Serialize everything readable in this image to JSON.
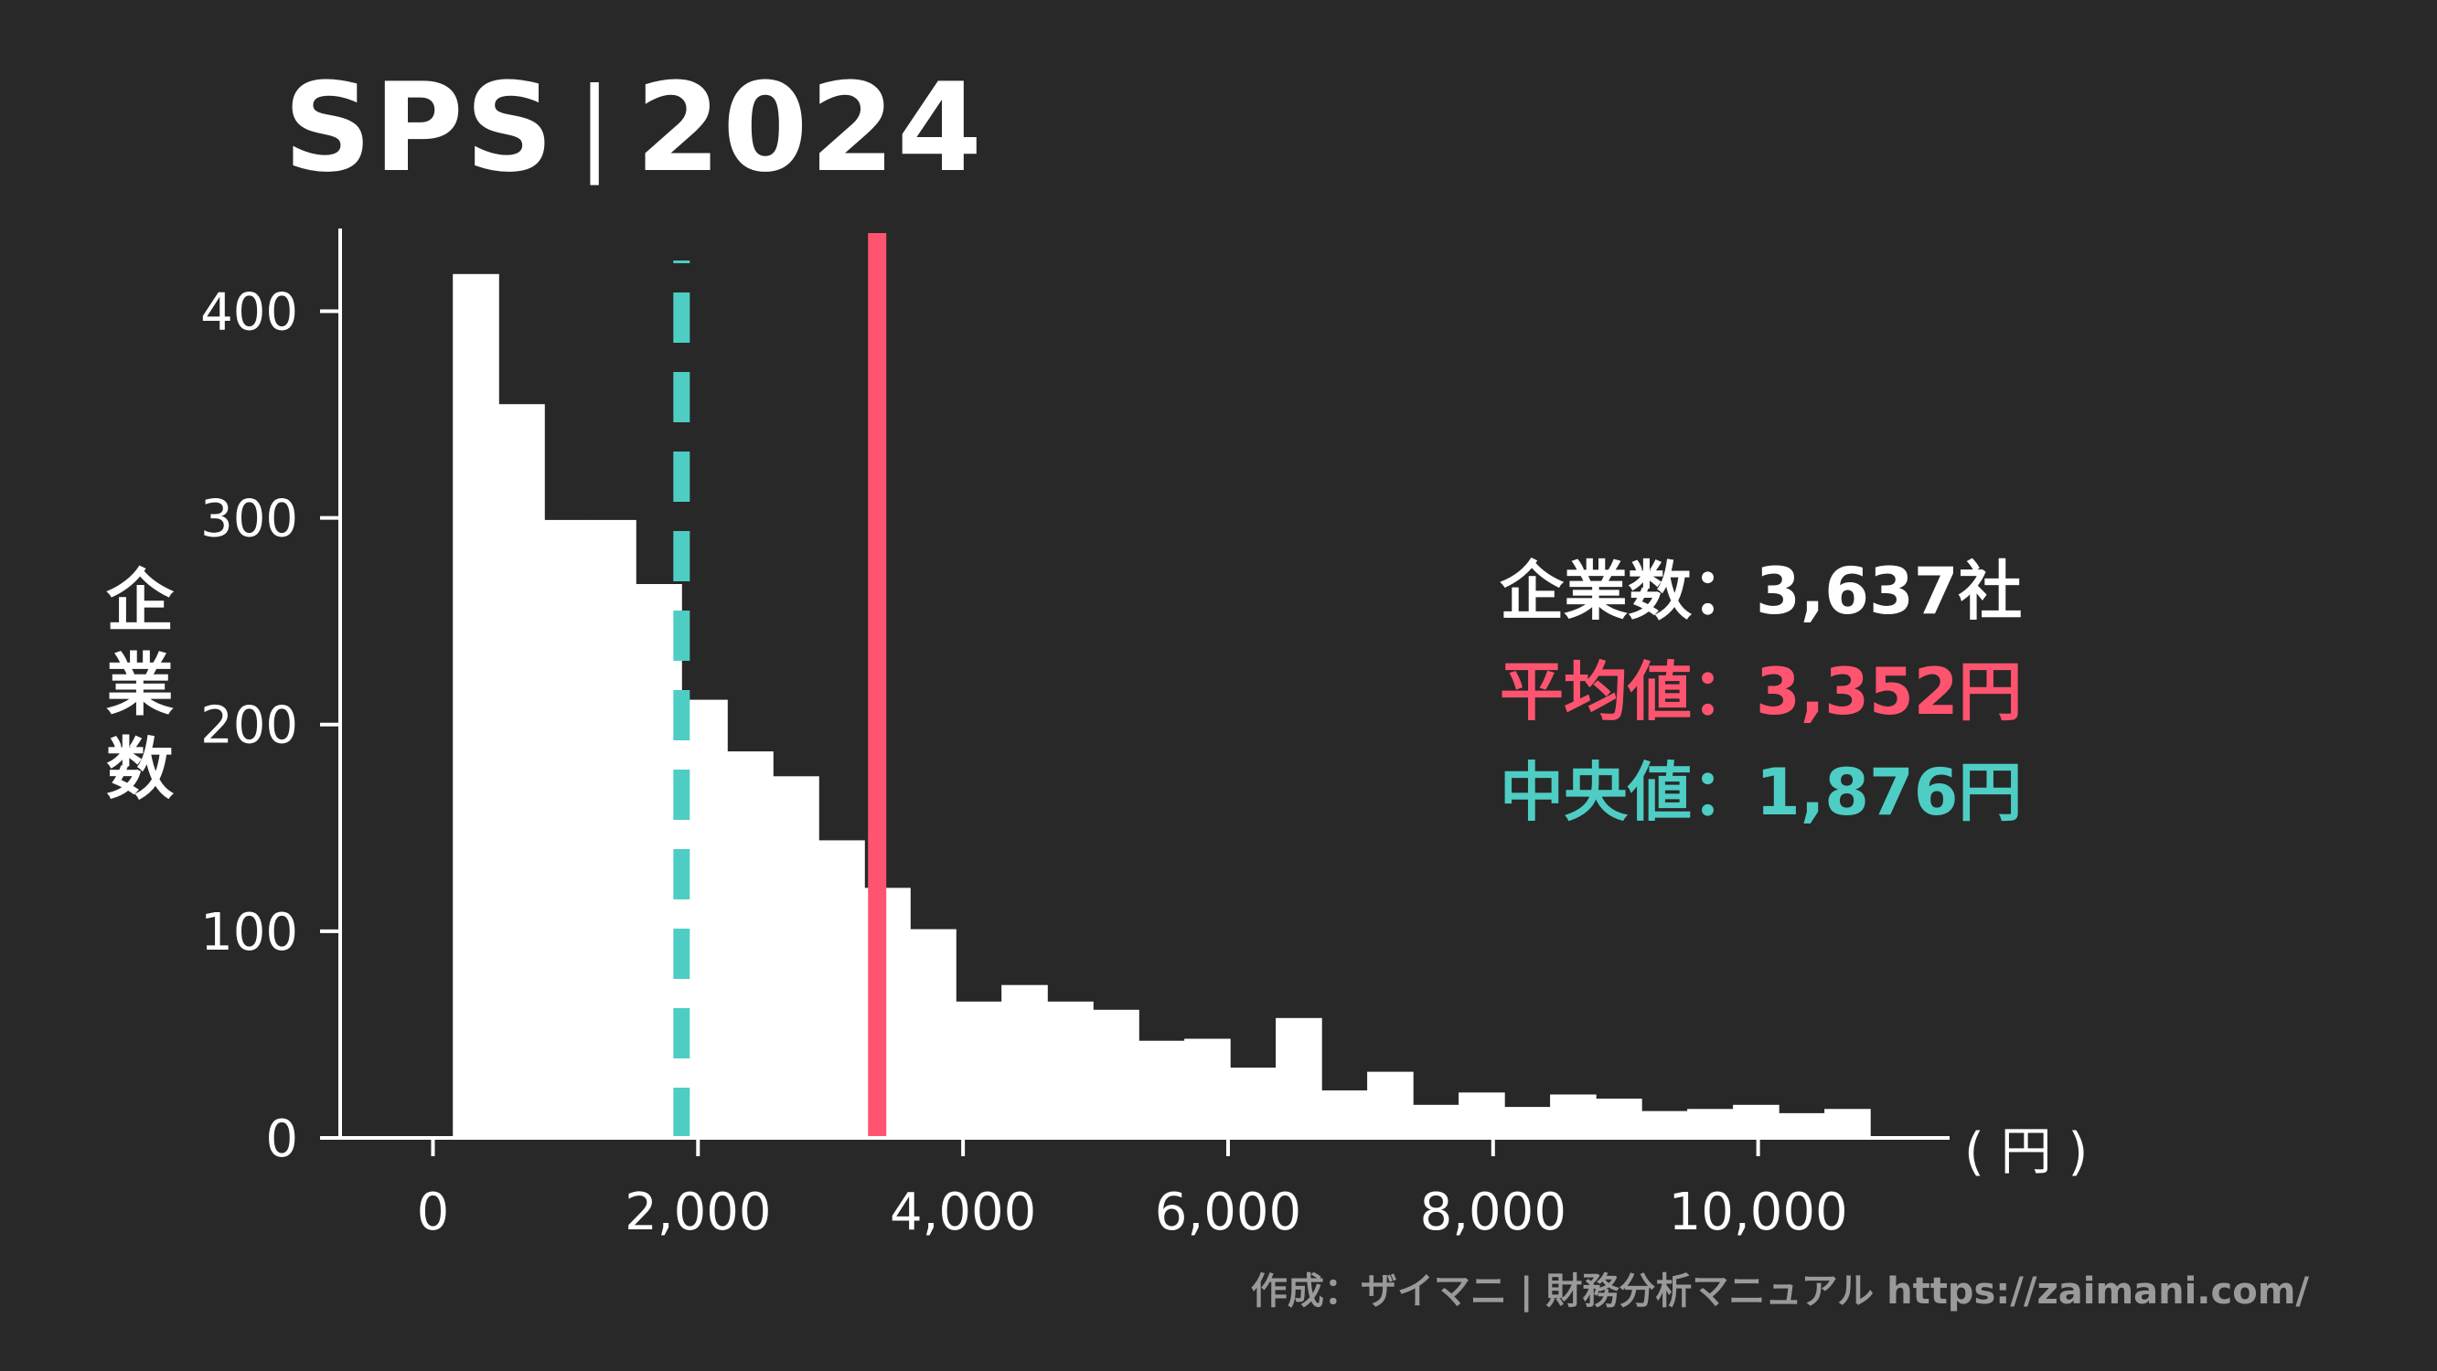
{
  "title": {
    "ticker": "SPS",
    "separator": "|",
    "year": "2024"
  },
  "ylabel": [
    "企",
    "業",
    "数"
  ],
  "unit_label": "( 円 )",
  "stats": {
    "count_label": "企業数",
    "count_value": "3,637社",
    "mean_label": "平均値",
    "mean_value": "3,352円",
    "median_label": "中央値",
    "median_value": "1,876円",
    "sep": "："
  },
  "credit": "作成：ザイマニ | 財務分析マニュアル https://zaimani.com/",
  "colors": {
    "background": "#282828",
    "bars": "#ffffff",
    "mean": "#ff5470",
    "median": "#4ecdc4",
    "credit": "#9a9a9a"
  },
  "chart_data": {
    "type": "bar",
    "title": "SPS｜2024",
    "ylabel": "企業数",
    "xlabel": "(円)",
    "xlim": [
      -300,
      11500
    ],
    "ylim": [
      0,
      440
    ],
    "xticks": [
      0,
      2000,
      4000,
      6000,
      8000,
      10000
    ],
    "xtick_labels": [
      "0",
      "2,000",
      "4,000",
      "6,000",
      "8,000",
      "10,000"
    ],
    "yticks": [
      0,
      100,
      200,
      300,
      400
    ],
    "ytick_labels": [
      "0",
      "100",
      "200",
      "300",
      "400"
    ],
    "bin_width": 345,
    "bin_starts": [
      150,
      495,
      840,
      1185,
      1530,
      1875,
      2220,
      2565,
      2910,
      3255,
      3600,
      3945,
      4290,
      4635,
      4980,
      5325,
      5670,
      6015,
      6360,
      6705,
      7050,
      7395,
      7740,
      8085,
      8430,
      8775,
      9120,
      9465,
      9810,
      10155,
      10500
    ],
    "values": [
      418,
      355,
      299,
      299,
      268,
      212,
      187,
      175,
      144,
      121,
      101,
      66,
      74,
      66,
      62,
      47,
      48,
      34,
      58,
      23,
      32,
      16,
      22,
      15,
      21,
      19,
      13,
      14,
      16,
      12,
      14
    ],
    "mean": 3352,
    "median": 1876,
    "grid": false
  }
}
